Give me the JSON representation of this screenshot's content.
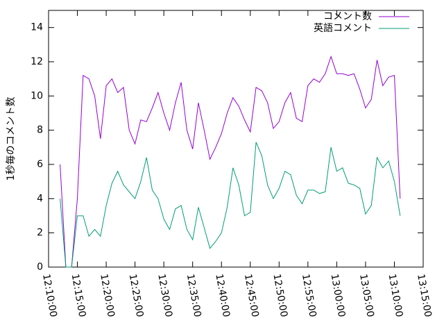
{
  "chart_data": {
    "type": "line",
    "ylabel": "1秒毎のコメント数",
    "x": [
      "12:12:00",
      "12:13:00",
      "12:14:00",
      "12:15:00",
      "12:16:00",
      "12:17:00",
      "12:18:00",
      "12:19:00",
      "12:20:00",
      "12:21:00",
      "12:22:00",
      "12:23:00",
      "12:24:00",
      "12:25:00",
      "12:26:00",
      "12:27:00",
      "12:28:00",
      "12:29:00",
      "12:30:00",
      "12:31:00",
      "12:32:00",
      "12:33:00",
      "12:34:00",
      "12:35:00",
      "12:36:00",
      "12:37:00",
      "12:38:00",
      "12:39:00",
      "12:40:00",
      "12:41:00",
      "12:42:00",
      "12:43:00",
      "12:44:00",
      "12:45:00",
      "12:46:00",
      "12:47:00",
      "12:48:00",
      "12:49:00",
      "12:50:00",
      "12:51:00",
      "12:52:00",
      "12:53:00",
      "12:54:00",
      "12:55:00",
      "12:56:00",
      "12:57:00",
      "12:58:00",
      "12:59:00",
      "13:00:00",
      "13:01:00",
      "13:02:00",
      "13:03:00",
      "13:04:00",
      "13:05:00",
      "13:06:00",
      "13:07:00",
      "13:08:00",
      "13:09:00",
      "13:10:00",
      "13:11:00"
    ],
    "series": [
      {
        "name": "コメント数",
        "color": "#9400d3",
        "values": [
          6.0,
          0,
          0,
          4,
          11.2,
          11.0,
          10.0,
          7.5,
          10.6,
          11.0,
          10.2,
          10.5,
          8.0,
          7.2,
          8.6,
          8.5,
          9.3,
          10.2,
          9.0,
          8.0,
          9.6,
          10.8,
          8.0,
          6.9,
          9.6,
          8.0,
          6.3,
          7.0,
          7.8,
          9.0,
          9.9,
          9.4,
          8.6,
          7.9,
          10.5,
          10.3,
          9.6,
          8.1,
          8.5,
          9.6,
          10.2,
          8.7,
          8.5,
          10.6,
          11.0,
          10.8,
          11.3,
          12.3,
          11.3,
          11.3,
          11.2,
          11.3,
          10.4,
          9.3,
          9.8,
          12.1,
          10.6,
          11.1,
          11.2,
          4.0
        ]
      },
      {
        "name": "英語コメント",
        "color": "#009e73",
        "values": [
          4.0,
          0,
          0,
          3,
          3.0,
          1.8,
          2.2,
          1.8,
          3.6,
          4.9,
          5.6,
          4.8,
          4.4,
          4.0,
          5.0,
          6.4,
          4.5,
          4.0,
          2.8,
          2.2,
          3.4,
          3.6,
          2.2,
          1.6,
          3.5,
          2.3,
          1.1,
          1.5,
          2.0,
          3.5,
          5.8,
          4.8,
          3.0,
          3.2,
          7.3,
          6.5,
          4.8,
          4.0,
          4.6,
          5.6,
          5.4,
          4.2,
          3.7,
          4.5,
          4.5,
          4.3,
          4.4,
          7.0,
          5.6,
          5.8,
          4.9,
          4.8,
          4.6,
          3.1,
          3.6,
          6.4,
          5.8,
          6.2,
          5.0,
          3.0
        ]
      }
    ],
    "xlim": [
      "12:10:00",
      "13:15:00"
    ],
    "xticks": [
      "12:10:00",
      "12:15:00",
      "12:20:00",
      "12:25:00",
      "12:30:00",
      "12:35:00",
      "12:40:00",
      "12:45:00",
      "12:50:00",
      "12:55:00",
      "13:00:00",
      "13:05:00",
      "13:10:00",
      "13:15:00"
    ],
    "ylim": [
      0,
      15
    ],
    "yticks": [
      0,
      2,
      4,
      6,
      8,
      10,
      12,
      14
    ],
    "legend": "top-right"
  }
}
